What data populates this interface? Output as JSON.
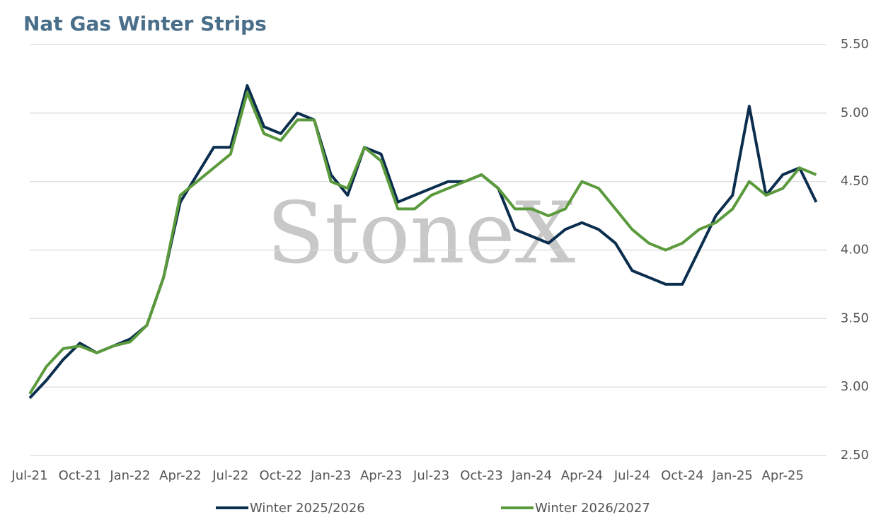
{
  "chart_data": {
    "type": "line",
    "title": "Nat Gas Winter Strips",
    "watermark": "StoneX",
    "categories": [
      "Jul-21",
      null,
      null,
      "Oct-21",
      null,
      null,
      "Jan-22",
      null,
      null,
      "Apr-22",
      null,
      null,
      "Jul-22",
      null,
      null,
      "Oct-22",
      null,
      null,
      "Jan-23",
      null,
      null,
      "Apr-23",
      null,
      null,
      "Jul-23",
      null,
      null,
      "Oct-23",
      null,
      null,
      "Jan-24",
      null,
      null,
      "Apr-24",
      null,
      null,
      "Jul-24",
      null,
      null,
      "Oct-24",
      null,
      null,
      "Jan-25",
      null,
      null,
      "Apr-25",
      null,
      null
    ],
    "series": [
      {
        "name": "Winter 2025/2026",
        "color": "#0b2d4e",
        "values": [
          2.92,
          3.05,
          3.2,
          3.32,
          3.25,
          3.3,
          3.35,
          3.45,
          3.8,
          4.35,
          4.55,
          4.75,
          4.75,
          5.2,
          4.9,
          4.85,
          5.0,
          4.95,
          4.55,
          4.4,
          4.75,
          4.7,
          4.35,
          4.4,
          4.45,
          4.5,
          4.5,
          4.55,
          4.45,
          4.15,
          4.1,
          4.05,
          4.15,
          4.2,
          4.15,
          4.05,
          3.85,
          3.8,
          3.75,
          3.75,
          4.0,
          4.25,
          4.4,
          5.05,
          4.4,
          4.55,
          4.6,
          4.35
        ]
      },
      {
        "name": "Winter 2026/2027",
        "color": "#5b9a3c",
        "values": [
          2.95,
          3.15,
          3.28,
          3.3,
          3.25,
          3.3,
          3.33,
          3.45,
          3.8,
          4.4,
          4.5,
          4.6,
          4.7,
          5.15,
          4.85,
          4.8,
          4.95,
          4.95,
          4.5,
          4.45,
          4.75,
          4.65,
          4.3,
          4.3,
          4.4,
          4.45,
          4.5,
          4.55,
          4.45,
          4.3,
          4.3,
          4.25,
          4.3,
          4.5,
          4.45,
          4.3,
          4.15,
          4.05,
          4.0,
          4.05,
          4.15,
          4.2,
          4.3,
          4.5,
          4.4,
          4.45,
          4.6,
          4.55
        ]
      }
    ],
    "ylim": [
      2.5,
      5.5
    ],
    "yticks": [
      {
        "value": 2.5,
        "label": "2.50"
      },
      {
        "value": 3,
        "label": "3.00"
      },
      {
        "value": 3.5,
        "label": "3.50"
      },
      {
        "value": 4,
        "label": "4.00"
      },
      {
        "value": 4.5,
        "label": "4.50"
      },
      {
        "value": 5,
        "label": "5.00"
      },
      {
        "value": 5.5,
        "label": "5.50"
      }
    ],
    "grid": true,
    "legend": "bottom"
  }
}
